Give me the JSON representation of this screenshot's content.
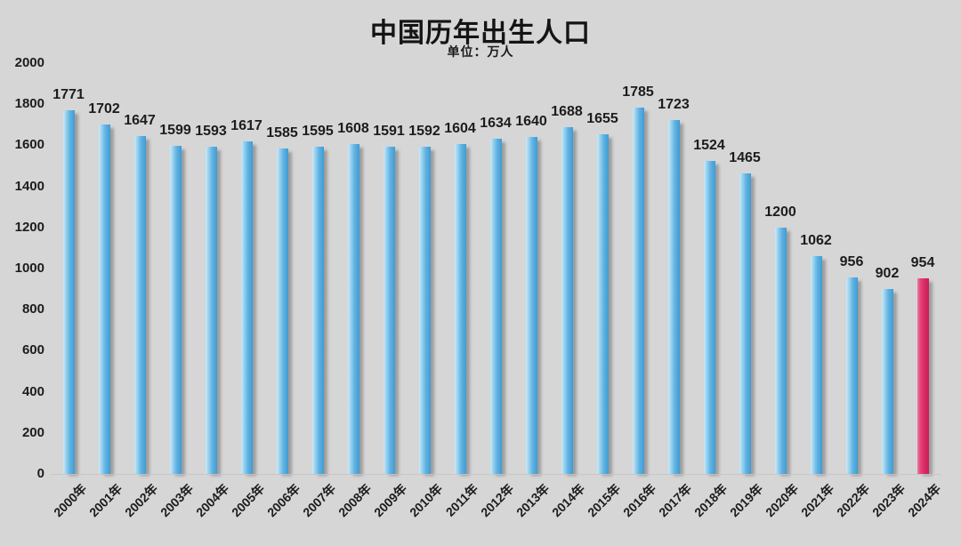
{
  "chart_data": {
    "type": "bar",
    "title": "中国历年出生人口",
    "subtitle": "单位：万人",
    "unit": "万人",
    "categories": [
      "2000年",
      "2001年",
      "2002年",
      "2003年",
      "2004年",
      "2005年",
      "2006年",
      "2007年",
      "2008年",
      "2009年",
      "2010年",
      "2011年",
      "2012年",
      "2013年",
      "2014年",
      "2015年",
      "2016年",
      "2017年",
      "2018年",
      "2019年",
      "2020年",
      "2021年",
      "2022年",
      "2023年",
      "2024年"
    ],
    "values": [
      1771,
      1702,
      1647,
      1599,
      1593,
      1617,
      1585,
      1595,
      1608,
      1591,
      1592,
      1604,
      1634,
      1640,
      1688,
      1655,
      1785,
      1723,
      1524,
      1465,
      1200,
      1062,
      956,
      902,
      954
    ],
    "highlight_index": 24,
    "ylim": [
      0,
      2000
    ],
    "yticks": [
      0,
      200,
      400,
      600,
      800,
      1000,
      1200,
      1400,
      1600,
      1800,
      2000
    ],
    "grid": false,
    "legend": false,
    "colors": {
      "background": "#d6d6d6",
      "text": "#1c1c1c",
      "bar_blue": "#3f9bd3",
      "bar_blue_light": "#a7d8f0",
      "bar_highlight_pink": "#d92a62",
      "shadow_gray": "#a9a9a9"
    }
  }
}
